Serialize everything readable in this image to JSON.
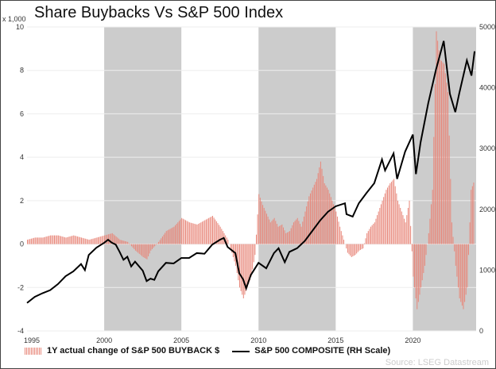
{
  "chart_data": {
    "type": "bar+line",
    "title": "Share Buybacks Vs S&P 500 Index",
    "left_axis": {
      "unit_label": "x 1,000",
      "range": [
        -4,
        10
      ],
      "ticks": [
        -4,
        -2,
        0,
        2,
        4,
        6,
        8,
        10
      ]
    },
    "right_axis": {
      "range": [
        0,
        5000
      ],
      "ticks": [
        0,
        1000,
        2000,
        3000,
        4000,
        5000
      ]
    },
    "x_ticks": [
      1995,
      2000,
      2005,
      2010,
      2015,
      2020
    ],
    "x_range": [
      1995,
      2024.1
    ],
    "shaded_periods": [
      [
        2000,
        2005
      ],
      [
        2010,
        2015
      ],
      [
        2020,
        2024.1
      ]
    ],
    "colors": {
      "bars": "#e8877a",
      "line": "#000000",
      "shade": "#cccccc"
    },
    "legend": [
      "1Y actual change of S&P 500 BUYBACK $",
      "S&P 500 COMPOSITE (RH Scale)"
    ],
    "source": "Source: LSEG Datastream",
    "series": [
      {
        "name": "1Y actual change of S&P 500 BUYBACK $",
        "type": "bar",
        "axis": "left",
        "x": [
          1995,
          1995.5,
          1996,
          1996.5,
          1997,
          1997.5,
          1998,
          1998.5,
          1999,
          1999.5,
          2000,
          2000.5,
          2001,
          2001.5,
          2002,
          2002.5,
          2002.75,
          2003,
          2003.5,
          2004,
          2004.5,
          2005,
          2005.5,
          2006,
          2006.5,
          2007,
          2007.5,
          2008,
          2008.5,
          2008.75,
          2009,
          2009.25,
          2009.5,
          2009.75,
          2010,
          2010.25,
          2010.5,
          2010.75,
          2011,
          2011.25,
          2011.5,
          2011.75,
          2012,
          2012.25,
          2012.5,
          2012.75,
          2013,
          2013.25,
          2013.5,
          2013.75,
          2014,
          2014.25,
          2014.5,
          2014.75,
          2015,
          2015.25,
          2015.5,
          2015.75,
          2016,
          2016.25,
          2016.5,
          2016.75,
          2017,
          2017.25,
          2017.5,
          2017.75,
          2018,
          2018.25,
          2018.5,
          2018.75,
          2019,
          2019.25,
          2019.5,
          2019.75,
          2020,
          2020.25,
          2020.5,
          2020.75,
          2021,
          2021.25,
          2021.5,
          2021.75,
          2022,
          2022.25,
          2022.5,
          2022.75,
          2023,
          2023.25,
          2023.5,
          2023.75,
          2024
        ],
        "values": [
          0.2,
          0.3,
          0.3,
          0.4,
          0.4,
          0.3,
          0.4,
          0.3,
          0.2,
          0.3,
          0.4,
          0.5,
          0.2,
          0.1,
          -0.3,
          -0.6,
          -0.7,
          -0.3,
          0.1,
          0.6,
          0.8,
          1.2,
          1.0,
          0.9,
          1.1,
          1.3,
          0.8,
          0.2,
          -1.0,
          -2.0,
          -2.5,
          -2.0,
          -1.5,
          -0.5,
          2.3,
          1.8,
          1.4,
          1.0,
          1.2,
          0.8,
          0.9,
          0.5,
          0.6,
          1.0,
          1.2,
          0.8,
          1.5,
          2.2,
          2.6,
          3.0,
          3.8,
          2.8,
          2.5,
          2.0,
          1.5,
          0.8,
          0.2,
          -0.4,
          -0.6,
          -0.5,
          -0.3,
          -0.2,
          0.5,
          0.8,
          1.0,
          1.5,
          2.0,
          2.5,
          2.8,
          3.0,
          2.0,
          1.5,
          1.0,
          2.0,
          -1.5,
          -3.0,
          -2.0,
          -1.0,
          0.5,
          2.5,
          9.8,
          8.5,
          8.3,
          7.0,
          1.0,
          -1.0,
          -2.5,
          -3.0,
          -2.0,
          2.5,
          3.0
        ]
      },
      {
        "name": "S&P 500 COMPOSITE (RH Scale)",
        "type": "line",
        "axis": "right",
        "x": [
          1995,
          1995.5,
          1996,
          1996.5,
          1997,
          1997.5,
          1998,
          1998.5,
          1998.75,
          1999,
          1999.5,
          2000,
          2000.25,
          2000.5,
          2000.75,
          2001,
          2001.25,
          2001.5,
          2001.75,
          2002,
          2002.5,
          2002.75,
          2003,
          2003.25,
          2003.5,
          2004,
          2004.5,
          2005,
          2005.5,
          2006,
          2006.5,
          2007,
          2007.5,
          2007.75,
          2008,
          2008.5,
          2008.75,
          2009,
          2009.2,
          2009.5,
          2010,
          2010.5,
          2011,
          2011.3,
          2011.7,
          2012,
          2012.5,
          2013,
          2013.5,
          2014,
          2014.5,
          2015,
          2015.6,
          2015.7,
          2016.1,
          2016.5,
          2017,
          2017.5,
          2018,
          2018.2,
          2018.75,
          2018.98,
          2019.5,
          2020,
          2020.2,
          2020.5,
          2021,
          2021.5,
          2022,
          2022.4,
          2022.75,
          2023,
          2023.5,
          2023.8,
          2024
        ],
        "values": [
          460,
          560,
          620,
          670,
          770,
          900,
          980,
          1100,
          1000,
          1250,
          1370,
          1450,
          1500,
          1450,
          1420,
          1300,
          1170,
          1220,
          1060,
          1140,
          990,
          820,
          860,
          840,
          980,
          1120,
          1110,
          1200,
          1200,
          1280,
          1270,
          1420,
          1500,
          1530,
          1380,
          1280,
          950,
          850,
          700,
          920,
          1120,
          1030,
          1280,
          1360,
          1130,
          1300,
          1360,
          1480,
          1650,
          1820,
          1960,
          2050,
          2100,
          1920,
          1880,
          2100,
          2270,
          2430,
          2820,
          2640,
          2920,
          2500,
          2950,
          3230,
          2580,
          3100,
          3750,
          4300,
          4770,
          3900,
          3600,
          3900,
          4450,
          4200,
          4600
        ]
      }
    ]
  }
}
